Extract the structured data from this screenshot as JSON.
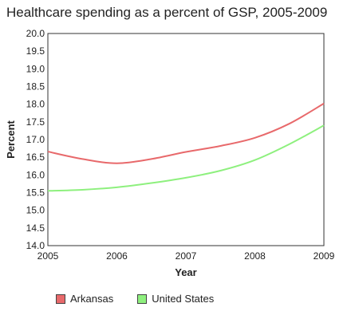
{
  "chart_data": {
    "type": "line",
    "title": "Healthcare spending as a percent of GSP, 2005-2009",
    "xlabel": "Year",
    "ylabel": "Percent",
    "x": [
      2005,
      2005.5,
      2006,
      2006.5,
      2007,
      2007.5,
      2008,
      2008.5,
      2009
    ],
    "x_ticks": [
      "2005",
      "2006",
      "2007",
      "2008",
      "2009"
    ],
    "xlim": [
      2005,
      2009
    ],
    "ylim": [
      14.0,
      20.0
    ],
    "y_ticks": [
      "14.0",
      "14.5",
      "15.0",
      "15.5",
      "16.0",
      "16.5",
      "17.0",
      "17.5",
      "18.0",
      "18.5",
      "19.0",
      "19.5",
      "20.0"
    ],
    "grid": false,
    "legend_position": "bottom",
    "series": [
      {
        "name": "Arkansas",
        "color": "#e8696b",
        "values": [
          16.66,
          16.45,
          16.33,
          16.45,
          16.65,
          16.82,
          17.05,
          17.45,
          18.02
        ]
      },
      {
        "name": "United States",
        "color": "#8ef07e",
        "values": [
          15.55,
          15.58,
          15.65,
          15.77,
          15.92,
          16.12,
          16.42,
          16.87,
          17.4
        ]
      }
    ]
  }
}
